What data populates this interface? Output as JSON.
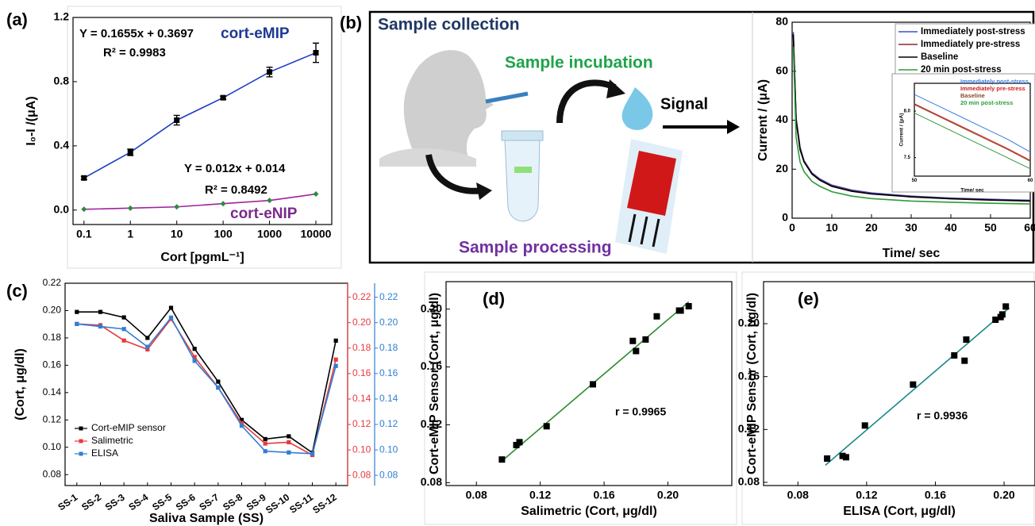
{
  "diagram": {
    "label": "(b)",
    "steps": [
      "Sample collection",
      "Sample incubation",
      "Signal",
      "Sample processing"
    ]
  },
  "chart_data": [
    {
      "type": "line",
      "panel": "(a)",
      "xlabel": "Cort [pgmL⁻¹]",
      "ylabel": "I₀-I /(μA)",
      "xscale": "log",
      "x": [
        0.1,
        1,
        10,
        100,
        1000,
        10000
      ],
      "series": [
        {
          "name": "cort-eMIP",
          "color": "#1f3fc4",
          "marker": "square",
          "marker_color": "#000000",
          "values": [
            0.2,
            0.36,
            0.56,
            0.7,
            0.86,
            0.98
          ],
          "errors": [
            0.01,
            0.02,
            0.03,
            0.01,
            0.03,
            0.06
          ]
        },
        {
          "name": "cort-eNIP",
          "color": "#a020a0",
          "marker": "diamond",
          "marker_color": "#2e8b3a",
          "values": [
            0.005,
            0.012,
            0.02,
            0.04,
            0.06,
            0.1
          ]
        }
      ],
      "xlim": [
        0.058,
        22000
      ],
      "xticks": [
        0.1,
        1,
        10,
        100,
        1000,
        10000
      ],
      "ylim": [
        -0.09,
        1.2
      ],
      "yticks": [
        {
          "value": 0,
          "label": "0.0"
        },
        0.4,
        0.8,
        1.2
      ],
      "annotations": [
        "Y = 0.1655x + 0.3697",
        "R² = 0.9983",
        "Y = 0.012x + 0.014",
        "R² = 0.8492"
      ]
    },
    {
      "type": "line",
      "xlabel": "Time/ sec",
      "ylabel": "Current / (μA)",
      "legend": "upper right",
      "x": [
        0.3,
        1,
        2,
        3,
        5,
        7,
        10,
        15,
        20,
        30,
        40,
        50,
        60
      ],
      "series": [
        {
          "name": "Immediately post-stress",
          "color": "#3a4fd8",
          "values": [
            76,
            41,
            29,
            23.5,
            18.5,
            16,
            13.5,
            11.5,
            10.3,
            9,
            8.2,
            7.7,
            7.3
          ]
        },
        {
          "name": "Immediately pre-stress",
          "color": "#8b2a2a",
          "values": [
            75,
            40.5,
            28.5,
            23.2,
            18.2,
            15.7,
            13.2,
            11.2,
            10,
            8.8,
            8,
            7.5,
            7.1
          ]
        },
        {
          "name": "Baseline",
          "color": "#000000",
          "values": [
            75,
            40,
            28,
            23,
            18,
            15.5,
            13,
            11,
            9.9,
            8.7,
            7.9,
            7.4,
            7
          ]
        },
        {
          "name": "20 min post-stress",
          "color": "#2e9b3a",
          "values": [
            70,
            33,
            23,
            19,
            15,
            13,
            10.8,
            9,
            8,
            7,
            6.5,
            6.1,
            5.8
          ]
        }
      ],
      "xlim": [
        0,
        60
      ],
      "xticks": [
        0,
        10,
        20,
        30,
        40,
        50,
        60
      ],
      "ylim": [
        0,
        80
      ],
      "yticks": [
        0,
        20,
        40,
        60,
        80
      ]
    },
    {
      "type": "line",
      "xlabel": "Time/ sec",
      "ylabel": "Current / (μA)",
      "legend": "upper right",
      "x": [
        50,
        52,
        54,
        56,
        58,
        60
      ],
      "series": [
        {
          "name": "Immediately post-stress",
          "color": "#3a7fe0",
          "values": [
            8.18,
            8.06,
            7.94,
            7.82,
            7.7,
            7.56
          ]
        },
        {
          "name": "Immediately pre-stress",
          "color": "#d02020",
          "values": [
            8.08,
            7.96,
            7.84,
            7.72,
            7.6,
            7.47
          ]
        },
        {
          "name": "Baseline",
          "color": "#8b4a2a",
          "values": [
            8.07,
            7.95,
            7.83,
            7.71,
            7.59,
            7.46
          ]
        },
        {
          "name": "20 min post-stress",
          "color": "#2e9b3a",
          "values": [
            7.98,
            7.86,
            7.74,
            7.62,
            7.5,
            7.38
          ]
        }
      ],
      "xlim": [
        50,
        60
      ],
      "xticks": [
        50,
        60
      ],
      "ylim": [
        7.3,
        8.3
      ],
      "yticks": [
        {
          "value": 7.5,
          "label": "7.5"
        },
        {
          "value": 8,
          "label": "8.0"
        }
      ]
    },
    {
      "type": "line",
      "panel": "(c)",
      "xlabel": "Saliva Sample (SS)",
      "ylabel": "(Cort, μg/dl)",
      "legend": "lower left",
      "categories": [
        "SS-1",
        "SS-2",
        "SS-3",
        "SS-4",
        "SS-5",
        "SS-6",
        "SS-7",
        "SS-8",
        "SS-9",
        "SS-10",
        "SS-11",
        "SS-12"
      ],
      "series": [
        {
          "name": "Cort-eMIP sensor",
          "color": "#000000",
          "values": [
            0.199,
            0.199,
            0.195,
            0.18,
            0.202,
            0.172,
            0.148,
            0.12,
            0.106,
            0.108,
            0.096,
            0.178
          ]
        },
        {
          "name": "Salimetric",
          "color": "#e8393e",
          "axis": "y2",
          "values": [
            0.199,
            0.198,
            0.186,
            0.179,
            0.203,
            0.173,
            0.149,
            0.121,
            0.105,
            0.106,
            0.096,
            0.171
          ]
        },
        {
          "name": "ELISA",
          "color": "#2f7fd6",
          "axis": "y3",
          "values": [
            0.199,
            0.197,
            0.195,
            0.181,
            0.204,
            0.17,
            0.149,
            0.119,
            0.099,
            0.098,
            0.097,
            0.166
          ]
        }
      ],
      "ylim": [
        0.072,
        0.22
      ],
      "yticks": [
        0.08,
        {
          "value": 0.1,
          "label": "0.10"
        },
        0.12,
        0.14,
        0.16,
        0.18,
        {
          "value": 0.2,
          "label": "0.20"
        },
        0.22
      ],
      "y2lim": [
        0.072,
        0.231
      ],
      "y2ticks": [
        0.08,
        {
          "value": 0.1,
          "label": "0.10"
        },
        0.12,
        0.14,
        0.16,
        0.18,
        {
          "value": 0.2,
          "label": "0.20"
        },
        0.22
      ],
      "y3lim": [
        0.072,
        0.231
      ],
      "y3ticks": [
        0.08,
        {
          "value": 0.1,
          "label": "0.10"
        },
        0.12,
        0.14,
        0.16,
        0.18,
        {
          "value": 0.2,
          "label": "0.20"
        },
        0.22
      ]
    },
    {
      "type": "scatter",
      "panel": "(d)",
      "xlabel": "Salimetric (Cort, μg/dl)",
      "ylabel": "Cort-eMIP Sensor (Cort, μg/dl)",
      "x": [
        0.096,
        0.105,
        0.107,
        0.124,
        0.153,
        0.178,
        0.18,
        0.186,
        0.193,
        0.207,
        0.208,
        0.213
      ],
      "series": [
        {
          "color": "#000000",
          "values": [
            0.096,
            0.106,
            0.108,
            0.119,
            0.148,
            0.178,
            0.171,
            0.179,
            0.195,
            0.199,
            0.199,
            0.202
          ]
        }
      ],
      "fit": {
        "color": "#2e8b2e",
        "x": [
          0.096,
          0.213
        ],
        "values": [
          0.095,
          0.205
        ]
      },
      "xlim": [
        0.061,
        0.24
      ],
      "xticks": [
        0.08,
        0.12,
        0.16,
        {
          "value": 0.2,
          "label": "0.20"
        }
      ],
      "ylim": [
        0.078,
        0.219
      ],
      "yticks": [
        0.08,
        0.12,
        0.16,
        {
          "value": 0.2,
          "label": "0.20"
        }
      ],
      "annotations": [
        "r = 0.9965"
      ]
    },
    {
      "type": "scatter",
      "panel": "(e)",
      "xlabel": "ELISA (Cort, μg/dl)",
      "ylabel": "Cort-eMIP Sensor (Cort, μg/dl)",
      "x": [
        0.097,
        0.106,
        0.108,
        0.119,
        0.147,
        0.171,
        0.177,
        0.178,
        0.195,
        0.198,
        0.199,
        0.201
      ],
      "series": [
        {
          "color": "#000000",
          "values": [
            0.098,
            0.1,
            0.099,
            0.123,
            0.154,
            0.176,
            0.172,
            0.188,
            0.203,
            0.205,
            0.207,
            0.213
          ]
        }
      ],
      "fit": {
        "color": "#1a8a8a",
        "x": [
          0.096,
          0.203
        ],
        "values": [
          0.093,
          0.212
        ]
      },
      "xlim": [
        0.06,
        0.218
      ],
      "xticks": [
        0.08,
        0.12,
        0.16,
        {
          "value": 0.2,
          "label": "0.20"
        }
      ],
      "ylim": [
        0.0776,
        0.2318
      ],
      "yticks": [
        0.08,
        0.12,
        0.16,
        {
          "value": 0.2,
          "label": "0.20"
        }
      ],
      "annotations": [
        "r = 0.9936"
      ]
    }
  ]
}
